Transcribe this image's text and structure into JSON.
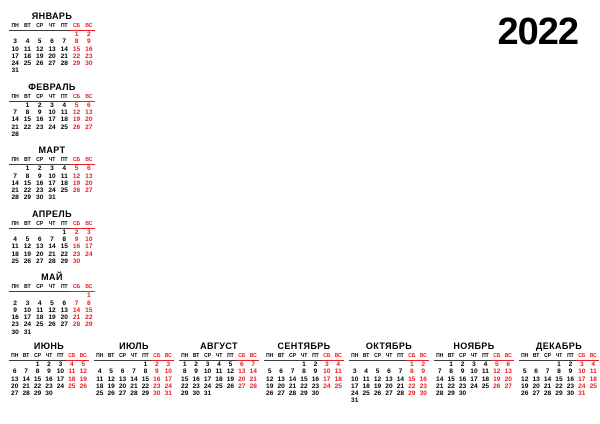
{
  "year": "2022",
  "weekdays": [
    "ПН",
    "ВТ",
    "СР",
    "ЧТ",
    "ПТ",
    "СБ",
    "ВС"
  ],
  "weekend_columns": [
    5,
    6
  ],
  "colors": {
    "background": "#ffffff",
    "text": "#000000",
    "weekend": "#e61e25"
  },
  "months": [
    {
      "name": "ЯНВАРЬ",
      "weeks": [
        [
          "",
          "",
          "",
          "",
          "",
          "1",
          "2"
        ],
        [
          "3",
          "4",
          "5",
          "6",
          "7",
          "8",
          "9"
        ],
        [
          "10",
          "11",
          "12",
          "13",
          "14",
          "15",
          "16"
        ],
        [
          "17",
          "18",
          "19",
          "20",
          "21",
          "22",
          "23"
        ],
        [
          "24",
          "25",
          "26",
          "27",
          "28",
          "29",
          "30"
        ],
        [
          "31",
          "",
          "",
          "",
          "",
          "",
          ""
        ]
      ]
    },
    {
      "name": "ФЕВРАЛЬ",
      "weeks": [
        [
          "",
          "1",
          "2",
          "3",
          "4",
          "5",
          "6"
        ],
        [
          "7",
          "8",
          "9",
          "10",
          "11",
          "12",
          "13"
        ],
        [
          "14",
          "15",
          "16",
          "17",
          "18",
          "19",
          "20"
        ],
        [
          "21",
          "22",
          "23",
          "24",
          "25",
          "26",
          "27"
        ],
        [
          "28",
          "",
          "",
          "",
          "",
          "",
          ""
        ]
      ]
    },
    {
      "name": "МАРТ",
      "weeks": [
        [
          "",
          "1",
          "2",
          "3",
          "4",
          "5",
          "6"
        ],
        [
          "7",
          "8",
          "9",
          "10",
          "11",
          "12",
          "13"
        ],
        [
          "14",
          "15",
          "16",
          "17",
          "18",
          "19",
          "20"
        ],
        [
          "21",
          "22",
          "23",
          "24",
          "25",
          "26",
          "27"
        ],
        [
          "28",
          "29",
          "30",
          "31",
          "",
          "",
          ""
        ]
      ]
    },
    {
      "name": "АПРЕЛЬ",
      "weeks": [
        [
          "",
          "",
          "",
          "",
          "1",
          "2",
          "3"
        ],
        [
          "4",
          "5",
          "6",
          "7",
          "8",
          "9",
          "10"
        ],
        [
          "11",
          "12",
          "13",
          "14",
          "15",
          "16",
          "17"
        ],
        [
          "18",
          "19",
          "20",
          "21",
          "22",
          "23",
          "24"
        ],
        [
          "25",
          "26",
          "27",
          "28",
          "29",
          "30",
          ""
        ]
      ]
    },
    {
      "name": "МАЙ",
      "weeks": [
        [
          "",
          "",
          "",
          "",
          "",
          "",
          "1"
        ],
        [
          "2",
          "3",
          "4",
          "5",
          "6",
          "7",
          "8"
        ],
        [
          "9",
          "10",
          "11",
          "12",
          "13",
          "14",
          "15"
        ],
        [
          "16",
          "17",
          "18",
          "19",
          "20",
          "21",
          "22"
        ],
        [
          "23",
          "24",
          "25",
          "26",
          "27",
          "28",
          "29"
        ],
        [
          "30",
          "31",
          "",
          "",
          "",
          "",
          ""
        ]
      ]
    },
    {
      "name": "ИЮНЬ",
      "weeks": [
        [
          "",
          "",
          "1",
          "2",
          "3",
          "4",
          "5"
        ],
        [
          "6",
          "7",
          "8",
          "9",
          "10",
          "11",
          "12"
        ],
        [
          "13",
          "14",
          "15",
          "16",
          "17",
          "18",
          "19"
        ],
        [
          "20",
          "21",
          "22",
          "23",
          "24",
          "25",
          "26"
        ],
        [
          "27",
          "28",
          "29",
          "30",
          "",
          "",
          ""
        ]
      ]
    },
    {
      "name": "ИЮЛЬ",
      "weeks": [
        [
          "",
          "",
          "",
          "",
          "1",
          "2",
          "3"
        ],
        [
          "4",
          "5",
          "6",
          "7",
          "8",
          "9",
          "10"
        ],
        [
          "11",
          "12",
          "13",
          "14",
          "15",
          "16",
          "17"
        ],
        [
          "18",
          "19",
          "20",
          "21",
          "22",
          "23",
          "24"
        ],
        [
          "25",
          "26",
          "27",
          "28",
          "29",
          "30",
          "31"
        ]
      ]
    },
    {
      "name": "АВГУСТ",
      "weeks": [
        [
          "1",
          "2",
          "3",
          "4",
          "5",
          "6",
          "7"
        ],
        [
          "8",
          "9",
          "10",
          "11",
          "12",
          "13",
          "14"
        ],
        [
          "15",
          "16",
          "17",
          "18",
          "19",
          "20",
          "21"
        ],
        [
          "22",
          "23",
          "24",
          "25",
          "26",
          "27",
          "28"
        ],
        [
          "29",
          "30",
          "31",
          "",
          "",
          "",
          ""
        ]
      ]
    },
    {
      "name": "СЕНТЯБРЬ",
      "weeks": [
        [
          "",
          "",
          "",
          "1",
          "2",
          "3",
          "4"
        ],
        [
          "5",
          "6",
          "7",
          "8",
          "9",
          "10",
          "11"
        ],
        [
          "12",
          "13",
          "14",
          "15",
          "16",
          "17",
          "18"
        ],
        [
          "19",
          "20",
          "21",
          "22",
          "23",
          "24",
          "25"
        ],
        [
          "26",
          "27",
          "28",
          "29",
          "30",
          "",
          ""
        ]
      ]
    },
    {
      "name": "ОКТЯБРЬ",
      "weeks": [
        [
          "",
          "",
          "",
          "",
          "",
          "1",
          "2"
        ],
        [
          "3",
          "4",
          "5",
          "6",
          "7",
          "8",
          "9"
        ],
        [
          "10",
          "11",
          "12",
          "13",
          "14",
          "15",
          "16"
        ],
        [
          "17",
          "18",
          "19",
          "20",
          "21",
          "22",
          "23"
        ],
        [
          "24",
          "25",
          "26",
          "27",
          "28",
          "29",
          "30"
        ],
        [
          "31",
          "",
          "",
          "",
          "",
          "",
          ""
        ]
      ]
    },
    {
      "name": "НОЯБРЬ",
      "weeks": [
        [
          "",
          "1",
          "2",
          "3",
          "4",
          "5",
          "6"
        ],
        [
          "7",
          "8",
          "9",
          "10",
          "11",
          "12",
          "13"
        ],
        [
          "14",
          "15",
          "16",
          "17",
          "18",
          "19",
          "20"
        ],
        [
          "21",
          "22",
          "23",
          "24",
          "25",
          "26",
          "27"
        ],
        [
          "28",
          "29",
          "30",
          "",
          "",
          "",
          ""
        ]
      ]
    },
    {
      "name": "ДЕКАБРЬ",
      "weeks": [
        [
          "",
          "",
          "",
          "1",
          "2",
          "3",
          "4"
        ],
        [
          "5",
          "6",
          "7",
          "8",
          "9",
          "10",
          "11"
        ],
        [
          "12",
          "13",
          "14",
          "15",
          "16",
          "17",
          "18"
        ],
        [
          "19",
          "20",
          "21",
          "22",
          "23",
          "24",
          "25"
        ],
        [
          "26",
          "27",
          "28",
          "29",
          "30",
          "31",
          ""
        ]
      ]
    }
  ]
}
